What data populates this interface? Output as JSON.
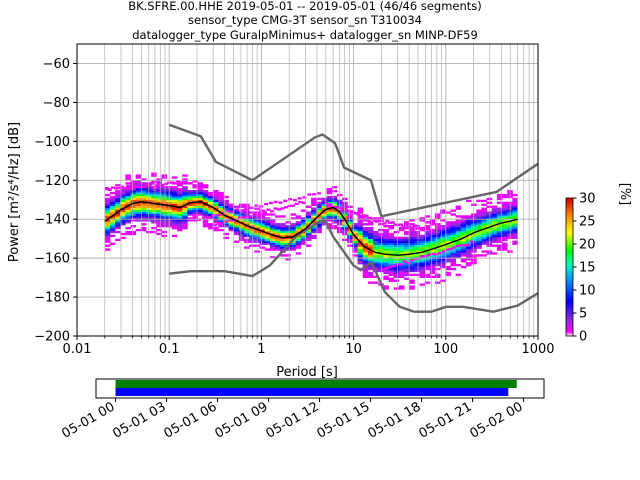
{
  "chart_data": [
    {
      "type": "heatmap",
      "subtype": "probabilistic-power-spectral-density",
      "title_lines": [
        "BK.SFRE.00.HHE   2019-05-01 -- 2019-05-01  (46/46 segments)",
        "sensor_type CMG-3T sensor_sn T310034",
        "datalogger_type GuralpMinimus+ datalogger_sn MINP-DF59"
      ],
      "xlabel": "Period [s]",
      "ylabel": "Power [m²/s⁴/Hz] [dB]",
      "x_scale": "log",
      "xlim": [
        0.01,
        1000
      ],
      "ylim": [
        -200,
        -50
      ],
      "x_ticks": [
        {
          "value": 0.01,
          "label": "0.01"
        },
        {
          "value": 0.1,
          "label": "0.1"
        },
        {
          "value": 1,
          "label": "1"
        },
        {
          "value": 10,
          "label": "10"
        },
        {
          "value": 100,
          "label": "100"
        },
        {
          "value": 1000,
          "label": "1000"
        }
      ],
      "y_ticks": [
        {
          "value": -60,
          "label": "−60"
        },
        {
          "value": -80,
          "label": "−80"
        },
        {
          "value": -100,
          "label": "−100"
        },
        {
          "value": -120,
          "label": "−120"
        },
        {
          "value": -140,
          "label": "−140"
        },
        {
          "value": -160,
          "label": "−160"
        },
        {
          "value": -180,
          "label": "−180"
        },
        {
          "value": -200,
          "label": "−200"
        }
      ],
      "grid": true,
      "colorbar": {
        "label": "[%]",
        "range": [
          0,
          30
        ],
        "ticks": [
          {
            "value": 0,
            "label": "0"
          },
          {
            "value": 5,
            "label": "5"
          },
          {
            "value": 10,
            "label": "10"
          },
          {
            "value": 15,
            "label": "15"
          },
          {
            "value": 20,
            "label": "20"
          },
          {
            "value": 25,
            "label": "25"
          },
          {
            "value": 30,
            "label": "30"
          }
        ]
      },
      "series": [
        {
          "role": "new-high-noise-model",
          "color": "#666666",
          "x": [
            0.1,
            0.22,
            0.32,
            0.8,
            3.8,
            4.6,
            6.3,
            7.9,
            15.4,
            20,
            354.8,
            1000
          ],
          "y": [
            -91.5,
            -97.4,
            -110.5,
            -120,
            -98,
            -96.5,
            -101,
            -113.5,
            -120,
            -138.5,
            -126,
            -111.5
          ]
        },
        {
          "role": "new-low-noise-model",
          "color": "#666666",
          "x": [
            0.1,
            0.17,
            0.4,
            0.8,
            1.24,
            2.4,
            4.3,
            5,
            6,
            10,
            12,
            15.6,
            21.9,
            31.6,
            45,
            70,
            101,
            154,
            328,
            600,
            1000
          ],
          "y": [
            -168,
            -166.7,
            -166.7,
            -169.2,
            -163.7,
            -148.6,
            -141.1,
            -141.1,
            -149,
            -163.8,
            -166.2,
            -162.1,
            -177.5,
            -185,
            -187.5,
            -187.5,
            -185,
            -185,
            -187.5,
            -184.4,
            -178
          ]
        },
        {
          "role": "mode",
          "color": "#000000",
          "x": [
            0.02,
            0.025,
            0.03,
            0.04,
            0.05,
            0.07,
            0.1,
            0.13,
            0.17,
            0.22,
            0.3,
            0.4,
            0.55,
            0.75,
            1,
            1.3,
            1.7,
            2.2,
            3,
            4,
            5,
            6,
            7,
            8,
            10,
            13,
            17,
            22,
            30,
            40,
            55,
            75,
            100,
            150,
            200,
            300,
            400,
            500,
            600
          ],
          "y": [
            -141,
            -138,
            -135,
            -132,
            -131,
            -132,
            -133,
            -134,
            -131.5,
            -131,
            -134,
            -138,
            -141,
            -144,
            -146,
            -148,
            -149.5,
            -149,
            -145,
            -139,
            -135,
            -134,
            -136,
            -140,
            -148,
            -154,
            -157,
            -158,
            -158.5,
            -158,
            -157,
            -155,
            -153,
            -150,
            -147,
            -144,
            -142,
            -141,
            -140
          ]
        }
      ],
      "density": {
        "peak_band": "core of the distribution follows the mode curve (about 20-30 %), spreading out to sparse magenta cells (below 5 %) roughly 10-20 dB above and below"
      }
    },
    {
      "type": "timeline",
      "xlabels": [
        "05-01 00",
        "05-01 03",
        "05-01 06",
        "05-01 09",
        "05-01 12",
        "05-01 15",
        "05-01 18",
        "05-01 21",
        "05-02 00"
      ],
      "x_hours": [
        0,
        3,
        6,
        9,
        12,
        15,
        18,
        21,
        24
      ],
      "xlim_hours": [
        -1.15,
        25.2
      ],
      "bars": [
        {
          "role": "data-coverage",
          "color": "#008000",
          "start_hours": 0,
          "end_hours": 23.6
        },
        {
          "role": "processed-segments",
          "color": "#0000ff",
          "start_hours": 0,
          "end_hours": 23.1
        }
      ]
    }
  ]
}
